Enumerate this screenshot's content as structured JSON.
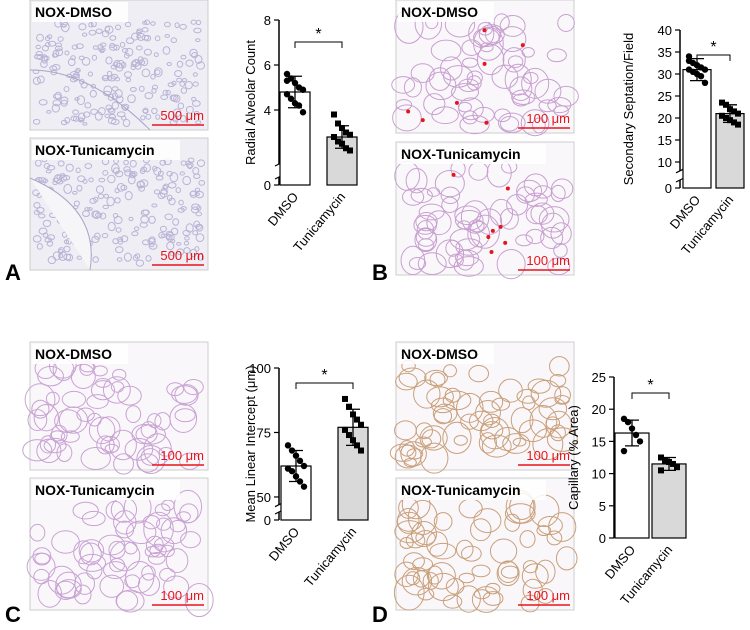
{
  "panels": [
    {
      "letter": "A",
      "images": [
        {
          "label": "NOX-DMSO",
          "scale": "500 μm"
        },
        {
          "label": "NOX-Tunicamycin",
          "scale": "500 μm"
        }
      ]
    },
    {
      "letter": "B",
      "images": [
        {
          "label": "NOX-DMSO",
          "scale": "100 μm"
        },
        {
          "label": "NOX-Tunicamycin",
          "scale": "100 μm"
        }
      ]
    },
    {
      "letter": "C",
      "images": [
        {
          "label": "NOX-DMSO",
          "scale": "100 μm"
        },
        {
          "label": "NOX-Tunicamycin",
          "scale": "100 μm"
        }
      ]
    },
    {
      "letter": "D",
      "images": [
        {
          "label": "NOX-DMSO",
          "scale": "100 μm"
        },
        {
          "label": "NOX-Tunicamycin",
          "scale": "100 μm"
        }
      ]
    }
  ],
  "chart_data": [
    {
      "type": "bar",
      "ylabel": "Radial Alveolar Count",
      "significance": "*",
      "categories": [
        "DMSO",
        "Tunicamycin"
      ],
      "colors": [
        "#ffffff",
        "#d9d9d9"
      ],
      "values": [
        4.8,
        2.8
      ],
      "errors": [
        0.7,
        0.5
      ],
      "points": [
        [
          5.6,
          5.4,
          5.2,
          5.0,
          4.9,
          4.7,
          4.5,
          4.3,
          4.2,
          3.9,
          5.3
        ],
        [
          3.8,
          3.4,
          3.2,
          3.0,
          2.9,
          2.8,
          2.6,
          2.5,
          2.3,
          2.2
        ]
      ],
      "ylim": [
        0,
        8
      ],
      "yticks": [
        0,
        4,
        6,
        8
      ],
      "axis_break": [
        0.3,
        1.6
      ]
    },
    {
      "type": "bar",
      "ylabel": "Secondary Septation/Field",
      "significance": "*",
      "categories": [
        "DMSO",
        "Tunicamycin"
      ],
      "colors": [
        "#ffffff",
        "#d9d9d9"
      ],
      "values": [
        31,
        21
      ],
      "errors": [
        2.5,
        2
      ],
      "points": [
        [
          33,
          32.5,
          32,
          31.5,
          31,
          31,
          30.5,
          30,
          29.5,
          28,
          34
        ],
        [
          23.5,
          23,
          22,
          21.5,
          21,
          20.5,
          20,
          19.5,
          19,
          18.5
        ]
      ],
      "ylim": [
        0,
        40
      ],
      "yticks": [
        0,
        10,
        15,
        20,
        25,
        30,
        35,
        40
      ],
      "axis_break": [
        2,
        8
      ]
    },
    {
      "type": "bar",
      "ylabel": "Mean Linear Intercept (μm)",
      "significance": "*",
      "categories": [
        "DMSO",
        "Tunicamycin"
      ],
      "colors": [
        "#ffffff",
        "#d9d9d9"
      ],
      "values": [
        62,
        77
      ],
      "errors": [
        6,
        7
      ],
      "points": [
        [
          70,
          68,
          66,
          64,
          62,
          61,
          60,
          58,
          56,
          54
        ],
        [
          88,
          85,
          82,
          80,
          78,
          76,
          74,
          72,
          70,
          68
        ]
      ],
      "ylim": [
        0,
        100
      ],
      "yticks": [
        0,
        50,
        75,
        100
      ],
      "axis_break": [
        5,
        47
      ]
    },
    {
      "type": "bar",
      "ylabel": "Capillary (% Area)",
      "significance": "*",
      "categories": [
        "DMSO",
        "Tunicamycin"
      ],
      "colors": [
        "#ffffff",
        "#d9d9d9"
      ],
      "values": [
        16.3,
        11.5
      ],
      "errors": [
        2,
        1
      ],
      "points": [
        [
          18.5,
          18,
          17,
          16,
          15,
          13.5
        ],
        [
          12.5,
          12,
          11.8,
          11.5,
          11,
          10.5
        ]
      ],
      "ylim": [
        0,
        25
      ],
      "yticks": [
        0,
        5,
        10,
        15,
        20,
        25
      ]
    }
  ]
}
